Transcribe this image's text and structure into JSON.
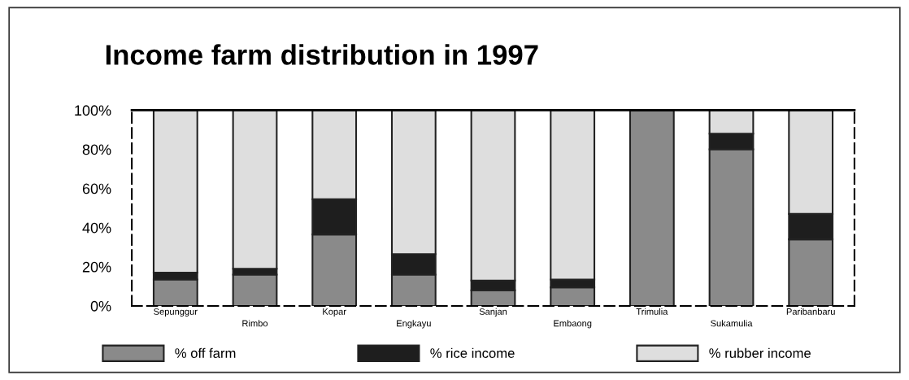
{
  "chart_data": {
    "type": "bar",
    "title": "Income farm distribution in 1997",
    "stacked": true,
    "categories": [
      "Sepunggur",
      "Rimbo",
      "Kopar",
      "Engkayu",
      "Sanjan",
      "Embaong",
      "Trimulia",
      "Sukamulia",
      "Paribanbaru"
    ],
    "series": [
      {
        "name": "% off farm",
        "color": "#8a8a8a",
        "values": [
          13.5,
          16,
          36.5,
          16,
          8,
          9.5,
          100,
          80,
          34
        ]
      },
      {
        "name": "% rice income",
        "color": "#1e1e1e",
        "values": [
          3.5,
          3,
          18,
          10.5,
          5,
          4,
          0,
          8,
          13
        ]
      },
      {
        "name": "% rubber income",
        "color": "#dedede",
        "values": [
          83,
          81,
          45.5,
          73.5,
          87,
          86.5,
          0,
          12,
          53
        ]
      }
    ],
    "ylim": [
      0,
      100
    ],
    "yticks": [
      {
        "value": 0,
        "label": "0%"
      },
      {
        "value": 20,
        "label": "20%"
      },
      {
        "value": 40,
        "label": "40%"
      },
      {
        "value": 60,
        "label": "60%"
      },
      {
        "value": 80,
        "label": "80%"
      },
      {
        "value": 100,
        "label": "100%"
      }
    ],
    "legend": "bottom",
    "grid": false
  }
}
